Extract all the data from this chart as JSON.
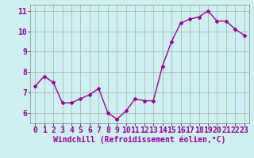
{
  "x": [
    0,
    1,
    2,
    3,
    4,
    5,
    6,
    7,
    8,
    9,
    10,
    11,
    12,
    13,
    14,
    15,
    16,
    17,
    18,
    19,
    20,
    21,
    22,
    23
  ],
  "y": [
    7.3,
    7.8,
    7.5,
    6.5,
    6.5,
    6.7,
    6.9,
    7.2,
    6.0,
    5.7,
    6.1,
    6.7,
    6.6,
    6.6,
    8.3,
    9.5,
    10.4,
    10.6,
    10.7,
    11.0,
    10.5,
    10.5,
    10.1,
    9.8
  ],
  "xlabel": "Windchill (Refroidissement éolien,°C)",
  "line_color": "#990099",
  "marker": "D",
  "marker_size": 2.0,
  "background_color": "#cef0f0",
  "grid_color": "#aaaaaa",
  "ylim": [
    5.5,
    11.3
  ],
  "yticks": [
    6,
    7,
    8,
    9,
    10,
    11
  ],
  "xticks": [
    0,
    1,
    2,
    3,
    4,
    5,
    6,
    7,
    8,
    9,
    10,
    11,
    12,
    13,
    14,
    15,
    16,
    17,
    18,
    19,
    20,
    21,
    22,
    23
  ],
  "xlabel_fontsize": 7.0,
  "tick_fontsize": 7.0,
  "line_width": 1.0,
  "xlim": [
    -0.5,
    23.5
  ]
}
